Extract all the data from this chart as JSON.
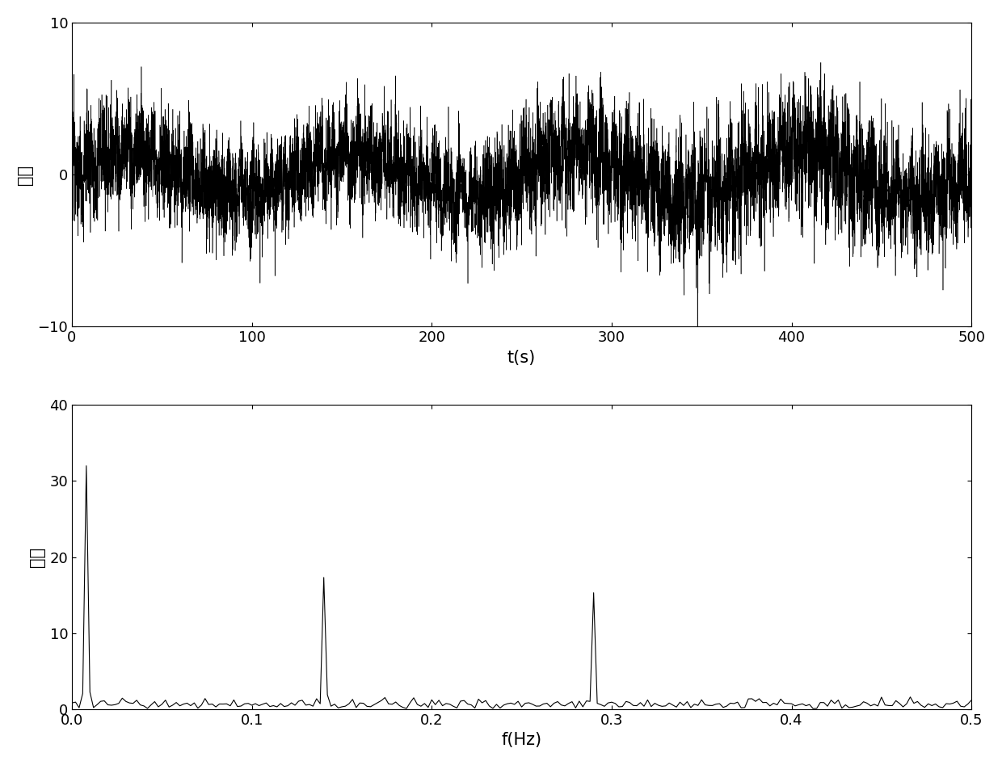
{
  "top_plot": {
    "xlabel": "t(s)",
    "ylabel": "幅値",
    "xlim": [
      0,
      500
    ],
    "ylim": [
      -10,
      10
    ],
    "xticks": [
      0,
      100,
      200,
      300,
      400,
      500
    ],
    "yticks": [
      -10,
      0,
      10
    ],
    "signal_color": "#000000",
    "linewidth": 0.4,
    "fs": 20,
    "duration": 500,
    "noise_std": 2.0,
    "seed": 12345
  },
  "bottom_plot": {
    "xlabel": "f(Hz)",
    "ylabel": "幅値",
    "xlim": [
      0,
      0.5
    ],
    "ylim": [
      0,
      40
    ],
    "xticks": [
      0,
      0.1,
      0.2,
      0.3,
      0.4,
      0.5
    ],
    "yticks": [
      0,
      10,
      20,
      30,
      40
    ],
    "signal_color": "#000000",
    "linewidth": 0.8
  },
  "figure_bg": "#ffffff",
  "font_size_label": 15,
  "font_size_tick": 13,
  "chinese_font": "SimHei"
}
